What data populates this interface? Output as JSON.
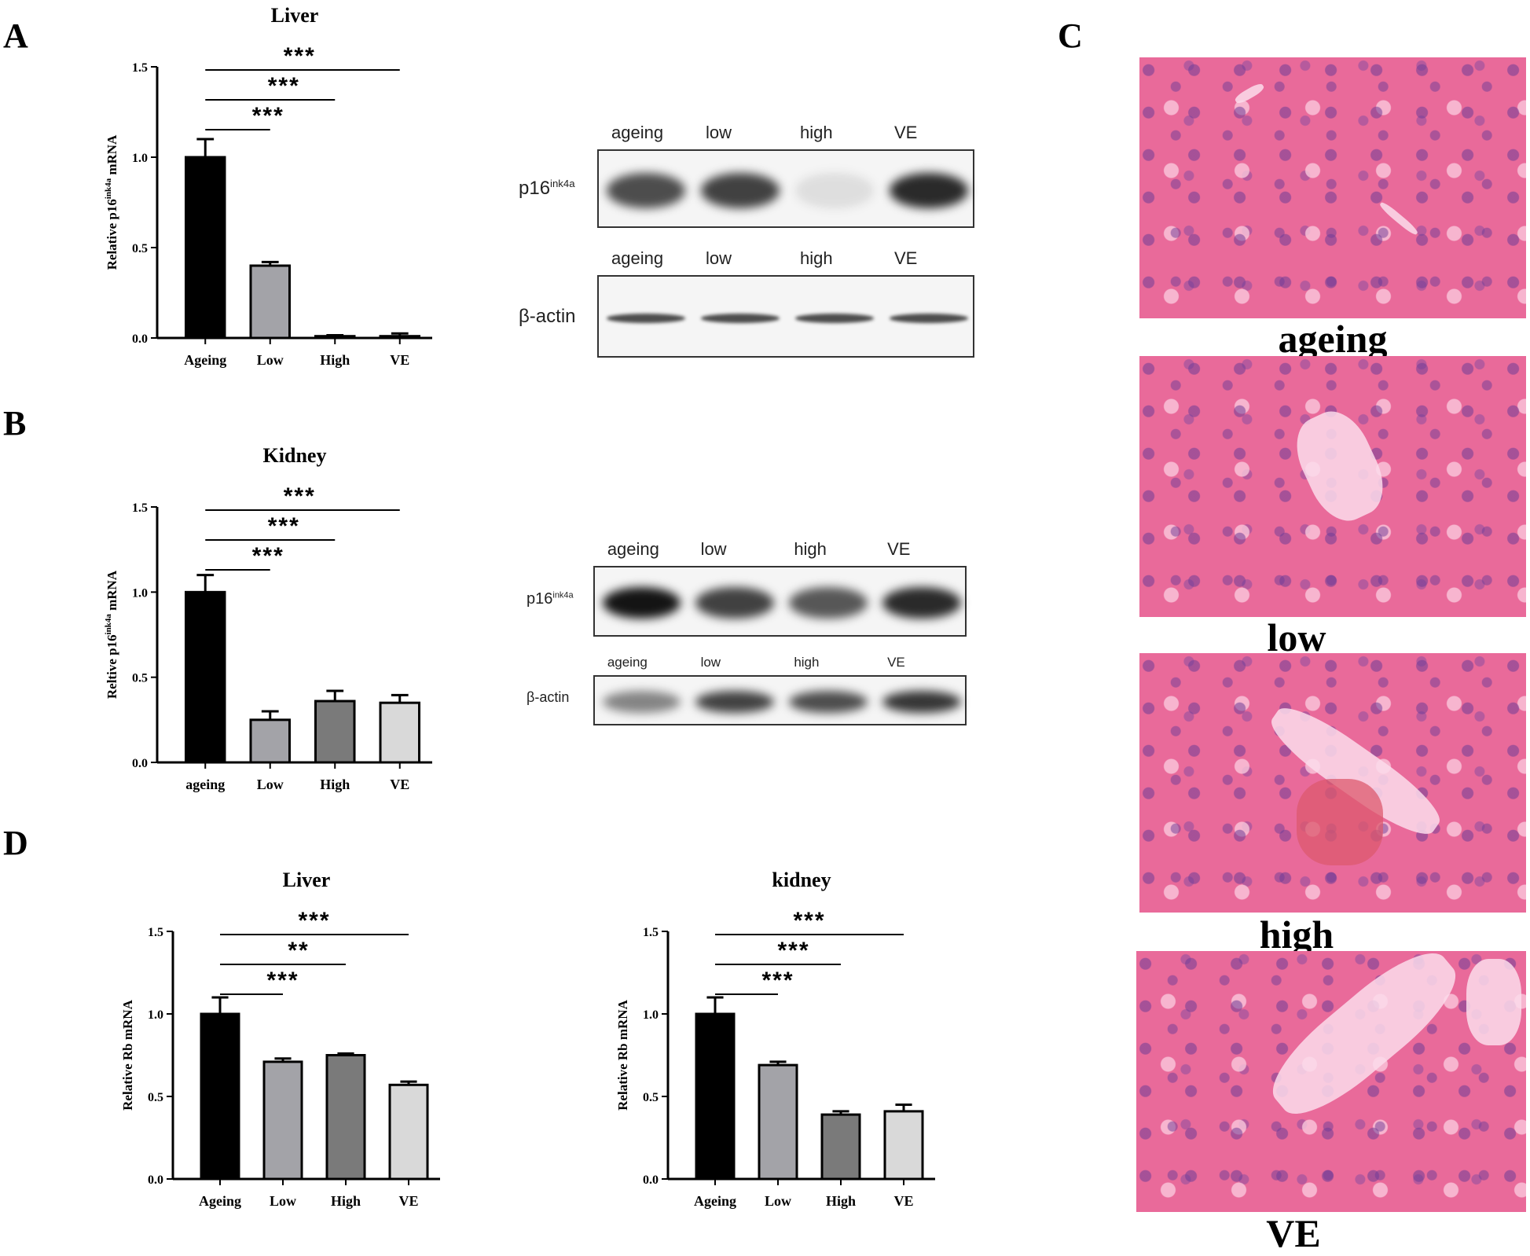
{
  "panels": {
    "A": "A",
    "B": "B",
    "C": "C",
    "D": "D"
  },
  "colors": {
    "ageing": "#000000",
    "low": "#a3a3a8",
    "high": "#7a7a7a",
    "ve": "#d9d9d9",
    "histo": "#e96a9a"
  },
  "chart_data": [
    {
      "id": "A",
      "type": "bar",
      "title": "Liver",
      "ylabel_main": "Relative p16",
      "ylabel_sup": "ink4a",
      "ylabel_tail": " mRNA",
      "categories": [
        "Ageing",
        "Low",
        "High",
        "VE"
      ],
      "values": [
        1.0,
        0.4,
        0.01,
        0.01
      ],
      "errors": [
        0.1,
        0.02,
        0.005,
        0.015
      ],
      "ylim": [
        0,
        1.5
      ],
      "yticks": [
        "0.0",
        "0.5",
        "1.0",
        "1.5"
      ],
      "significance": [
        "***",
        "***",
        "***"
      ]
    },
    {
      "id": "B",
      "type": "bar",
      "title": "Kidney",
      "ylabel_main": "Reltive p16",
      "ylabel_sup": "ink4a",
      "ylabel_tail": " mRNA",
      "categories": [
        "ageing",
        "Low",
        "High",
        "VE"
      ],
      "values": [
        1.0,
        0.25,
        0.36,
        0.35
      ],
      "errors": [
        0.1,
        0.05,
        0.06,
        0.045
      ],
      "ylim": [
        0,
        1.5
      ],
      "yticks": [
        "0.0",
        "0.5",
        "1.0",
        "1.5"
      ],
      "significance": [
        "***",
        "***",
        "***"
      ]
    },
    {
      "id": "D1",
      "type": "bar",
      "title": "Liver",
      "ylabel_main": "Relative Rb mRNA",
      "ylabel_sup": "",
      "ylabel_tail": "",
      "categories": [
        "Ageing",
        "Low",
        "High",
        "VE"
      ],
      "values": [
        1.0,
        0.71,
        0.75,
        0.57
      ],
      "errors": [
        0.1,
        0.02,
        0.01,
        0.02
      ],
      "ylim": [
        0,
        1.5
      ],
      "yticks": [
        "0.0",
        "0.5",
        "1.0",
        "1.5"
      ],
      "significance": [
        "***",
        "**",
        "***"
      ]
    },
    {
      "id": "D2",
      "type": "bar",
      "title": "kidney",
      "ylabel_main": "Relative Rb mRNA",
      "ylabel_sup": "",
      "ylabel_tail": "",
      "categories": [
        "Ageing",
        "Low",
        "High",
        "VE"
      ],
      "values": [
        1.0,
        0.69,
        0.39,
        0.41
      ],
      "errors": [
        0.1,
        0.02,
        0.02,
        0.04
      ],
      "ylim": [
        0,
        1.5
      ],
      "yticks": [
        "0.0",
        "0.5",
        "1.0",
        "1.5"
      ],
      "significance": [
        "***",
        "***",
        "***"
      ]
    }
  ],
  "blots": {
    "A_p16": {
      "lanes": [
        "ageing",
        "low",
        "high",
        "VE"
      ],
      "label": "p16",
      "sup": "ink4a",
      "intensity": [
        0.75,
        0.8,
        0.1,
        0.9
      ]
    },
    "A_actin": {
      "lanes": [
        "ageing",
        "low",
        "high",
        "VE"
      ],
      "label": "β-actin",
      "intensity": [
        0.75,
        0.75,
        0.75,
        0.75
      ]
    },
    "B_p16": {
      "lanes": [
        "ageing",
        "low",
        "high",
        "VE"
      ],
      "label": "p16",
      "sup": "ink4a",
      "intensity": [
        1.0,
        0.8,
        0.7,
        0.9
      ]
    },
    "B_actin": {
      "lanes": [
        "ageing",
        "low",
        "high",
        "VE"
      ],
      "label": "β-actin",
      "intensity": [
        0.5,
        0.8,
        0.75,
        0.85
      ]
    }
  },
  "histology": [
    "ageing",
    "low",
    "high",
    "VE"
  ]
}
